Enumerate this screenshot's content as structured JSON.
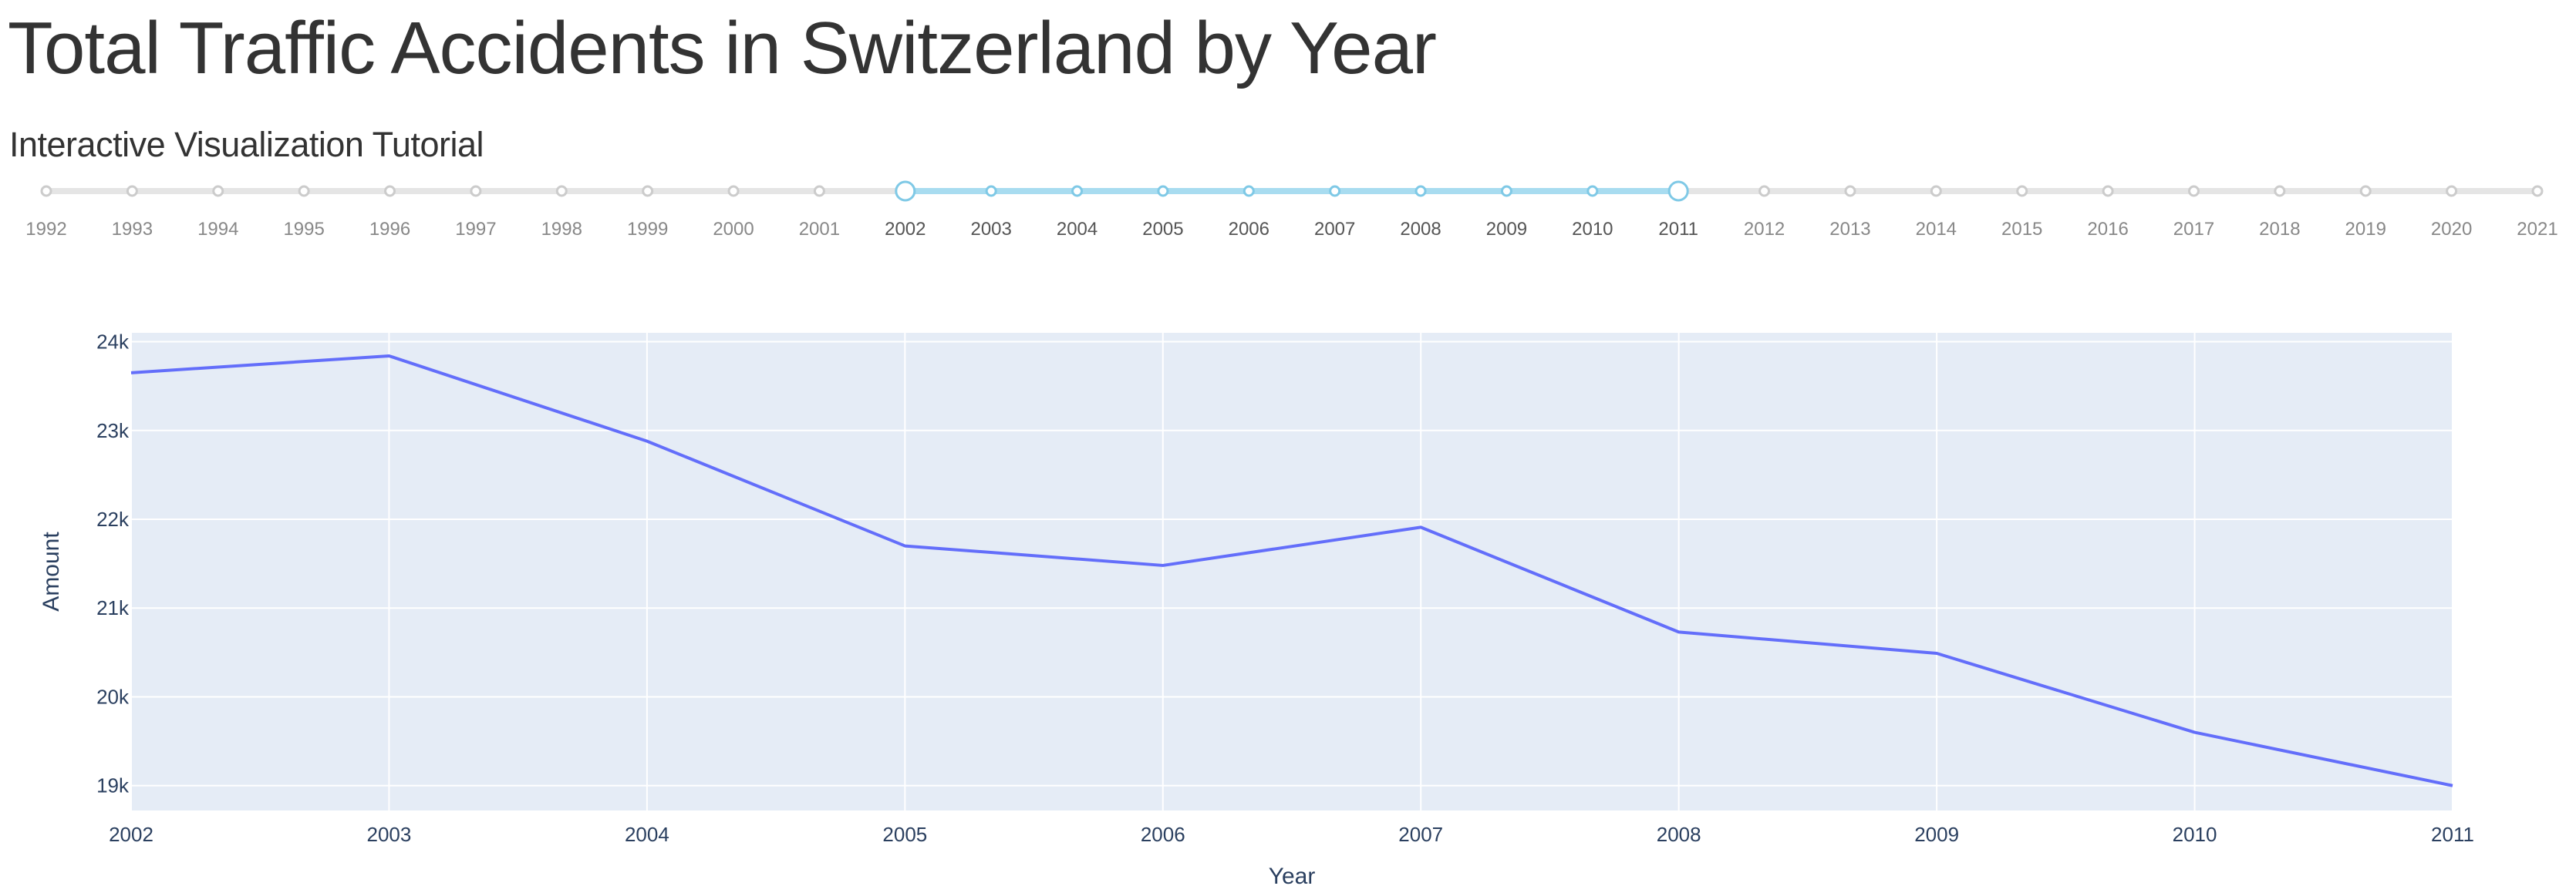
{
  "page": {
    "title": "Total Traffic Accidents in Switzerland by Year",
    "subtitle": "Interactive Visualization Tutorial"
  },
  "year_range_slider": {
    "years": [
      "1992",
      "1993",
      "1994",
      "1995",
      "1996",
      "1997",
      "1998",
      "1999",
      "2000",
      "2001",
      "2002",
      "2003",
      "2004",
      "2005",
      "2006",
      "2007",
      "2008",
      "2009",
      "2010",
      "2011",
      "2012",
      "2013",
      "2014",
      "2015",
      "2016",
      "2017",
      "2018",
      "2019",
      "2020",
      "2021"
    ],
    "selected_start": "2002",
    "selected_end": "2011",
    "colors": {
      "track": "#e5e5e5",
      "selected_track": "#a8dcf0",
      "handle": "#7fc9e6",
      "tick_label": "#888888",
      "tick_label_active": "#555555"
    }
  },
  "chart_data": {
    "type": "line",
    "x": [
      "2002",
      "2003",
      "2004",
      "2005",
      "2006",
      "2007",
      "2008",
      "2009",
      "2010",
      "2011"
    ],
    "series": [
      {
        "values": [
          23650,
          23840,
          22880,
          21700,
          21480,
          21910,
          20730,
          20490,
          19600,
          19000
        ]
      }
    ],
    "xlabel": "Year",
    "ylabel": "Amount",
    "ylim": [
      18720,
      24100
    ],
    "yticks": [
      19000,
      20000,
      21000,
      22000,
      23000,
      24000
    ],
    "ytick_labels": [
      "19k",
      "20k",
      "21k",
      "22k",
      "23k",
      "24k"
    ],
    "grid": true,
    "colors": {
      "line": "#636efa",
      "plot_bg": "#e5ecf6",
      "grid": "#ffffff",
      "axis_text": "#2a3f5f"
    }
  }
}
